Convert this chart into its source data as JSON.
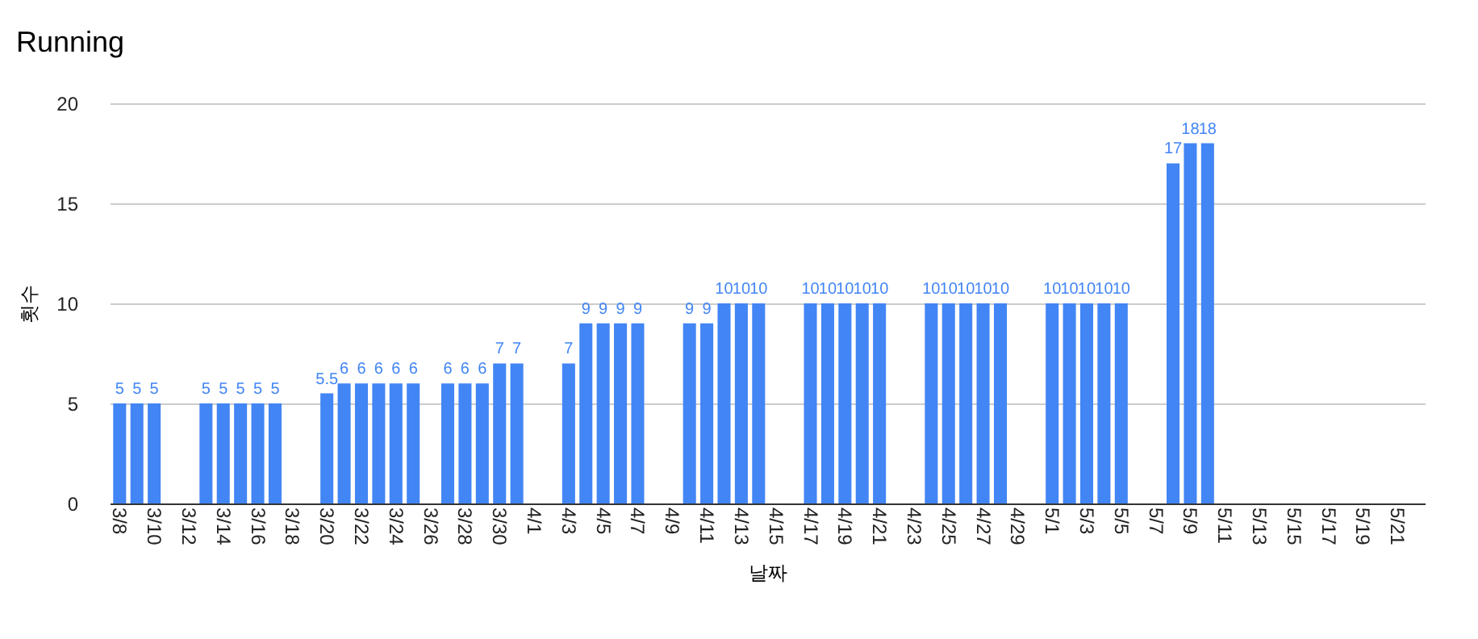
{
  "chart_data": {
    "type": "bar",
    "title": "Running",
    "xlabel": "날짜",
    "ylabel": "횟수",
    "categories": [
      "3/8",
      null,
      "3/10",
      null,
      "3/12",
      null,
      "3/14",
      null,
      "3/16",
      null,
      "3/18",
      null,
      "3/20",
      null,
      "3/22",
      null,
      "3/24",
      null,
      "3/26",
      null,
      "3/28",
      null,
      "3/30",
      null,
      "4/1",
      null,
      "4/3",
      null,
      "4/5",
      null,
      "4/7",
      null,
      "4/9",
      null,
      "4/11",
      null,
      "4/13",
      null,
      "4/15",
      null,
      "4/17",
      null,
      "4/19",
      null,
      "4/21",
      null,
      "4/23",
      null,
      "4/25",
      null,
      "4/27",
      null,
      "4/29",
      null,
      "5/1",
      null,
      "5/3",
      null,
      "5/5",
      null,
      "5/7",
      null,
      "5/9",
      null,
      "5/11",
      null,
      "5/13",
      null,
      "5/15",
      null,
      "5/17",
      null,
      "5/19",
      null,
      "5/21",
      null
    ],
    "values": [
      5,
      5,
      5,
      null,
      null,
      5,
      5,
      5,
      5,
      5,
      null,
      null,
      5.5,
      6,
      6,
      6,
      6,
      6,
      null,
      6,
      6,
      6,
      7,
      7,
      null,
      null,
      7,
      9,
      9,
      9,
      9,
      null,
      null,
      9,
      9,
      10,
      10,
      10,
      null,
      null,
      10,
      10,
      10,
      10,
      10,
      null,
      null,
      10,
      10,
      10,
      10,
      10,
      null,
      null,
      10,
      10,
      10,
      10,
      10,
      null,
      null,
      17,
      18,
      18,
      null,
      null,
      null,
      null,
      null,
      null,
      null,
      null,
      null,
      null,
      null,
      null
    ],
    "color": "#4285f4",
    "data_labels": true,
    "ylim": [
      0,
      20
    ],
    "yticks": [
      0,
      5,
      10,
      15,
      20
    ],
    "grid": "y"
  }
}
